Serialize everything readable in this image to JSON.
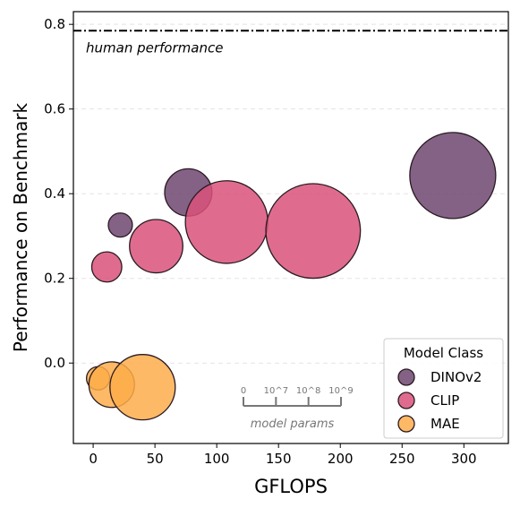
{
  "chart_data": {
    "type": "scatter",
    "xlabel": "GFLOPS",
    "ylabel": "Performance on Benchmark",
    "xlim": [
      -16,
      336
    ],
    "ylim": [
      -0.19,
      0.83
    ],
    "xticks": [
      0,
      50,
      100,
      150,
      200,
      250,
      300
    ],
    "yticks": [
      0.0,
      0.2,
      0.4,
      0.6,
      0.8
    ],
    "xtick_labels": [
      "0",
      "50",
      "100",
      "150",
      "200",
      "250",
      "300"
    ],
    "ytick_labels": [
      "0.0",
      "0.2",
      "0.4",
      "0.6",
      "0.8"
    ],
    "grid": "horizontal dashed",
    "reference_line": {
      "y": 0.785,
      "label": "human performance",
      "style": "dash-dot"
    },
    "colors": {
      "DINOv2": "#6e4671",
      "CLIP": "#d9527a",
      "MAE": "#fdad4a",
      "edge": "#2a1a22",
      "ref": "#000000",
      "scale": "#777777"
    },
    "series": [
      {
        "name": "DINOv2",
        "points": [
          {
            "x": 22,
            "y": 0.326,
            "size": 0.28
          },
          {
            "x": 77,
            "y": 0.403,
            "size": 0.55
          },
          {
            "x": 291,
            "y": 0.443,
            "size": 1.0
          }
        ]
      },
      {
        "name": "CLIP",
        "points": [
          {
            "x": 11,
            "y": 0.227,
            "size": 0.35
          },
          {
            "x": 51,
            "y": 0.276,
            "size": 0.62
          },
          {
            "x": 108,
            "y": 0.333,
            "size": 0.96
          },
          {
            "x": 178,
            "y": 0.312,
            "size": 1.1
          }
        ]
      },
      {
        "name": "MAE",
        "points": [
          {
            "x": 4,
            "y": -0.036,
            "size": 0.27
          },
          {
            "x": 15,
            "y": -0.051,
            "size": 0.53
          },
          {
            "x": 40,
            "y": -0.057,
            "size": 0.76
          }
        ]
      }
    ],
    "legend": {
      "title": "Model Class",
      "placement": "bottom-right",
      "entries": [
        "DINOv2",
        "CLIP",
        "MAE"
      ]
    },
    "size_scale": {
      "labels": [
        "0",
        "10^7",
        "10^8",
        "10^9"
      ],
      "caption": "model params"
    }
  }
}
